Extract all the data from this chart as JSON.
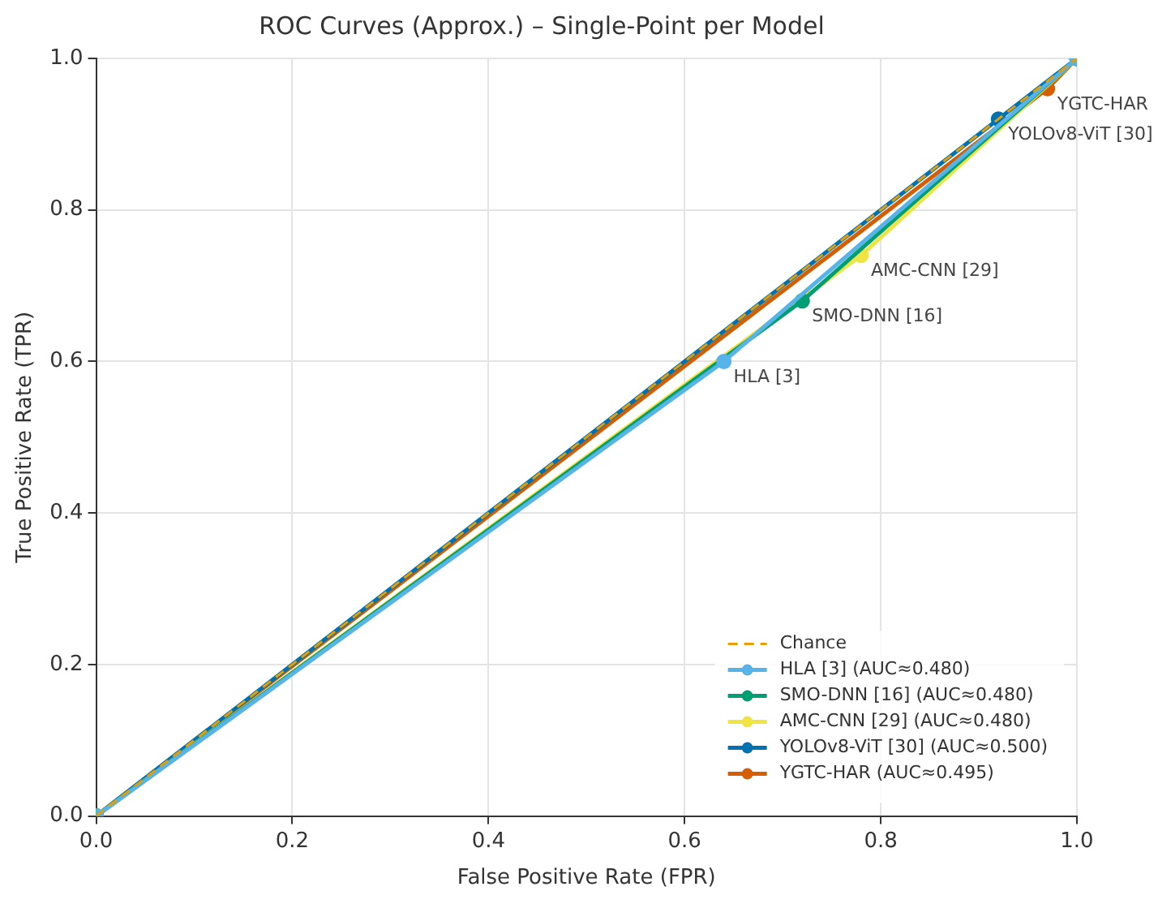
{
  "chart_data": {
    "type": "line",
    "title": "ROC Curves (Approx.) – Single-Point per Model",
    "xlabel": "False Positive Rate (FPR)",
    "ylabel": "True Positive Rate (TPR)",
    "series": [
      {
        "name": "Chance",
        "color": "#e69f00",
        "x": [
          0,
          1
        ],
        "values": [
          0,
          1
        ],
        "line_style": "dashed",
        "marker": "none"
      },
      {
        "name": "HLA [3] (AUC≈0.480)",
        "color": "#56b4e9",
        "x": [
          0,
          0.64,
          1
        ],
        "values": [
          0,
          0.6,
          1
        ]
      },
      {
        "name": "SMO-DNN [16] (AUC≈0.480)",
        "color": "#009e73",
        "x": [
          0,
          0.72,
          1
        ],
        "values": [
          0,
          0.68,
          1
        ]
      },
      {
        "name": "AMC-CNN [29] (AUC≈0.480)",
        "color": "#f0e442",
        "x": [
          0,
          0.78,
          1
        ],
        "values": [
          0,
          0.74,
          1
        ]
      },
      {
        "name": "YOLOv8-ViT [30] (AUC≈0.500)",
        "color": "#0072b2",
        "x": [
          0,
          0.92,
          1
        ],
        "values": [
          0,
          0.92,
          1
        ]
      },
      {
        "name": "YGTC-HAR (AUC≈0.495)",
        "color": "#d55e00",
        "x": [
          0,
          0.97,
          1
        ],
        "values": [
          0,
          0.96,
          1
        ]
      }
    ],
    "annotations": [
      {
        "text": "HLA [3]",
        "x": 0.64,
        "y": 0.6
      },
      {
        "text": "SMO-DNN [16]",
        "x": 0.72,
        "y": 0.68
      },
      {
        "text": "AMC-CNN [29]",
        "x": 0.78,
        "y": 0.74
      },
      {
        "text": "YOLOv8-ViT [30]",
        "x": 0.92,
        "y": 0.92
      },
      {
        "text": "YGTC-HAR",
        "x": 0.97,
        "y": 0.96
      }
    ],
    "xlim": [
      0,
      1
    ],
    "ylim": [
      0,
      1
    ],
    "xticks": [
      {
        "value": 0,
        "label": "0.0"
      },
      {
        "value": 0.2,
        "label": "0.2"
      },
      {
        "value": 0.4,
        "label": "0.4"
      },
      {
        "value": 0.6,
        "label": "0.6"
      },
      {
        "value": 0.8,
        "label": "0.8"
      },
      {
        "value": 1,
        "label": "1.0"
      }
    ],
    "yticks": [
      {
        "value": 0,
        "label": "0.0"
      },
      {
        "value": 0.2,
        "label": "0.2"
      },
      {
        "value": 0.4,
        "label": "0.4"
      },
      {
        "value": 0.6,
        "label": "0.6"
      },
      {
        "value": 0.8,
        "label": "0.8"
      },
      {
        "value": 1,
        "label": "1.0"
      }
    ],
    "grid": true,
    "legend": "bottom right",
    "marker": "circle",
    "line_style": "solid"
  }
}
